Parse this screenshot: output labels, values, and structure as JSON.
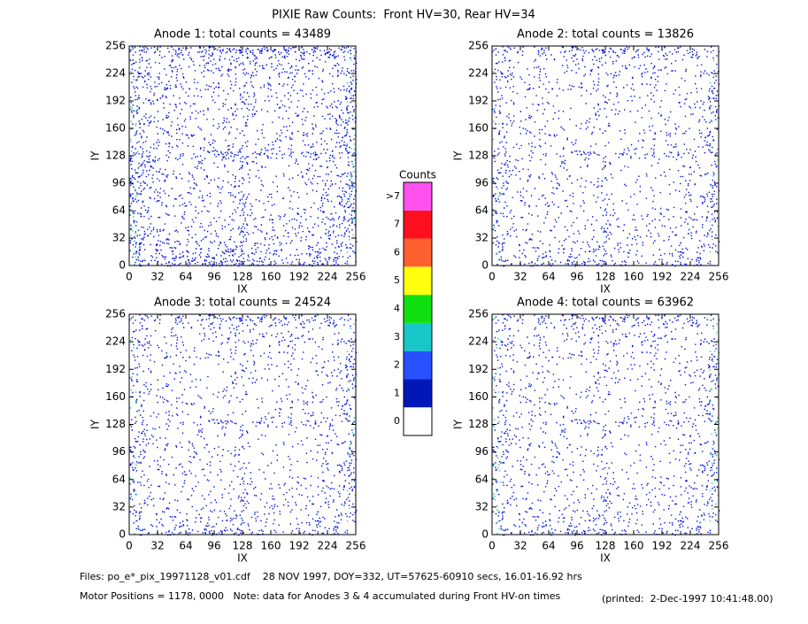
{
  "title": "PIXIE Raw Counts:  Front HV=30, Rear HV=34",
  "chart_data": [
    {
      "type": "heatmap",
      "title": "Anode 1: total counts = 43489",
      "xlabel": "IX",
      "ylabel": "IY",
      "xlim": [
        0,
        256
      ],
      "ylim": [
        0,
        256
      ],
      "xticks": [
        0,
        32,
        64,
        96,
        128,
        160,
        192,
        224,
        256
      ],
      "yticks": [
        0,
        32,
        64,
        96,
        128,
        160,
        192,
        224,
        256
      ]
    },
    {
      "type": "heatmap",
      "title": "Anode 2: total counts = 13826",
      "xlabel": "IX",
      "ylabel": "IY",
      "xlim": [
        0,
        256
      ],
      "ylim": [
        0,
        256
      ],
      "xticks": [
        0,
        32,
        64,
        96,
        128,
        160,
        192,
        224,
        256
      ],
      "yticks": [
        0,
        32,
        64,
        96,
        128,
        160,
        192,
        224,
        256
      ]
    },
    {
      "type": "heatmap",
      "title": "Anode 3: total counts = 24524",
      "xlabel": "IX",
      "ylabel": "IY",
      "xlim": [
        0,
        256
      ],
      "ylim": [
        0,
        256
      ],
      "xticks": [
        0,
        32,
        64,
        96,
        128,
        160,
        192,
        224,
        256
      ],
      "yticks": [
        0,
        32,
        64,
        96,
        128,
        160,
        192,
        224,
        256
      ]
    },
    {
      "type": "heatmap",
      "title": "Anode 4: total counts = 63962",
      "xlabel": "IX",
      "ylabel": "IY",
      "xlim": [
        0,
        256
      ],
      "ylim": [
        0,
        256
      ],
      "xticks": [
        0,
        32,
        64,
        96,
        128,
        160,
        192,
        224,
        256
      ],
      "yticks": [
        0,
        32,
        64,
        96,
        128,
        160,
        192,
        224,
        256
      ]
    }
  ],
  "colorbar": {
    "title": "Counts",
    "categories": [
      "0",
      "1",
      "2",
      "3",
      "4",
      "5",
      "6",
      "7",
      ">7"
    ],
    "colors": [
      "#ffffff",
      "#0018b8",
      "#2850ff",
      "#18c8c8",
      "#10e010",
      "#ffff10",
      "#ff6030",
      "#ff1020",
      "#ff50f0"
    ]
  },
  "footer": {
    "line1": "Files: po_e*_pix_19971128_v01.cdf    28 NOV 1997, DOY=332, UT=57625-60910 secs, 16.01-16.92 hrs",
    "line2": "Motor Positions = 1178, 0000   Note: data for Anodes 3 & 4 accumulated during Front HV-on times",
    "printed": "(printed:  2-Dec-1997 10:41:48.00)"
  }
}
